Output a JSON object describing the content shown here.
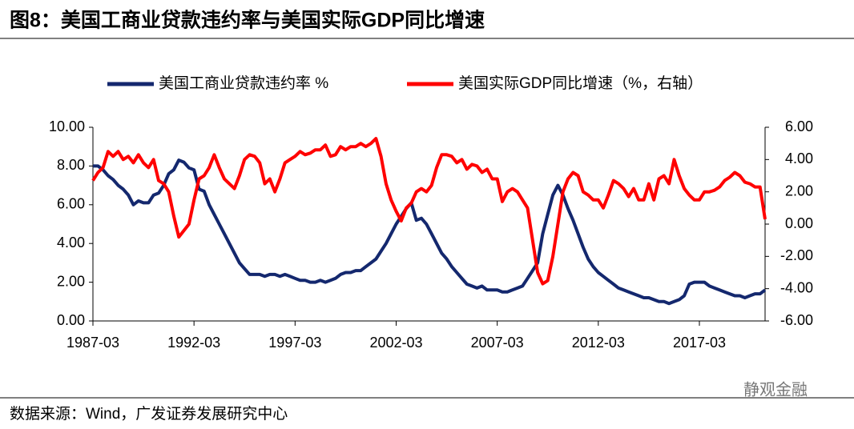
{
  "chart_data": {
    "type": "line",
    "title": "图8：美国工商业贷款违约率与美国实际GDP同比增速",
    "source": "数据来源：Wind，广发证券发展研究中心",
    "watermark": "静观金融",
    "x": [
      "1987-03",
      "1987-06",
      "1987-09",
      "1987-12",
      "1988-03",
      "1988-06",
      "1988-09",
      "1988-12",
      "1989-03",
      "1989-06",
      "1989-09",
      "1989-12",
      "1990-03",
      "1990-06",
      "1990-09",
      "1990-12",
      "1991-03",
      "1991-06",
      "1991-09",
      "1991-12",
      "1992-03",
      "1992-06",
      "1992-09",
      "1992-12",
      "1993-03",
      "1993-06",
      "1993-09",
      "1993-12",
      "1994-03",
      "1994-06",
      "1994-09",
      "1994-12",
      "1995-03",
      "1995-06",
      "1995-09",
      "1995-12",
      "1996-03",
      "1996-06",
      "1996-09",
      "1996-12",
      "1997-03",
      "1997-06",
      "1997-09",
      "1997-12",
      "1998-03",
      "1998-06",
      "1998-09",
      "1998-12",
      "1999-03",
      "1999-06",
      "1999-09",
      "1999-12",
      "2000-03",
      "2000-06",
      "2000-09",
      "2000-12",
      "2001-03",
      "2001-06",
      "2001-09",
      "2001-12",
      "2002-03",
      "2002-06",
      "2002-09",
      "2002-12",
      "2003-03",
      "2003-06",
      "2003-09",
      "2003-12",
      "2004-03",
      "2004-06",
      "2004-09",
      "2004-12",
      "2005-03",
      "2005-06",
      "2005-09",
      "2005-12",
      "2006-03",
      "2006-06",
      "2006-09",
      "2006-12",
      "2007-03",
      "2007-06",
      "2007-09",
      "2007-12",
      "2008-03",
      "2008-06",
      "2008-09",
      "2008-12",
      "2009-03",
      "2009-06",
      "2009-09",
      "2009-12",
      "2010-03",
      "2010-06",
      "2010-09",
      "2010-12",
      "2011-03",
      "2011-06",
      "2011-09",
      "2011-12",
      "2012-03",
      "2012-06",
      "2012-09",
      "2012-12",
      "2013-03",
      "2013-06",
      "2013-09",
      "2013-12",
      "2014-03",
      "2014-06",
      "2014-09",
      "2014-12",
      "2015-03",
      "2015-06",
      "2015-09",
      "2015-12",
      "2016-03",
      "2016-06",
      "2016-09",
      "2016-12",
      "2017-03",
      "2017-06",
      "2017-09",
      "2017-12",
      "2018-03",
      "2018-06",
      "2018-09",
      "2018-12",
      "2019-03",
      "2019-06",
      "2019-09",
      "2019-12",
      "2020-03",
      "2020-06"
    ],
    "xlim": [
      "1987-03",
      "2020-06"
    ],
    "xticks": [
      "1987-03",
      "1992-03",
      "1997-03",
      "2002-03",
      "2007-03",
      "2012-03",
      "2017-03"
    ],
    "ylim": [
      0,
      10
    ],
    "yticks": [
      {
        "value": 0,
        "label": "0.00"
      },
      {
        "value": 2,
        "label": "2.00"
      },
      {
        "value": 4,
        "label": "4.00"
      },
      {
        "value": 6,
        "label": "6.00"
      },
      {
        "value": 8,
        "label": "8.00"
      },
      {
        "value": 10,
        "label": "10.00"
      }
    ],
    "y2lim": [
      -6,
      6
    ],
    "y2ticks": [
      {
        "value": -6,
        "label": "-6.00"
      },
      {
        "value": -4,
        "label": "-4.00"
      },
      {
        "value": -2,
        "label": "-2.00"
      },
      {
        "value": 0,
        "label": "0.00"
      },
      {
        "value": 2,
        "label": "2.00"
      },
      {
        "value": 4,
        "label": "4.00"
      },
      {
        "value": 6,
        "label": "6.00"
      }
    ],
    "series": [
      {
        "name": "美国工商业贷款违约率 %",
        "color": "#14286e",
        "values": [
          8.0,
          8.0,
          7.8,
          7.5,
          7.3,
          7.0,
          6.8,
          6.5,
          6.0,
          6.2,
          6.1,
          6.1,
          6.5,
          6.6,
          7.0,
          7.6,
          7.8,
          8.3,
          8.2,
          7.9,
          7.8,
          6.8,
          6.7,
          6.0,
          5.5,
          5.0,
          4.5,
          4.0,
          3.5,
          3.0,
          2.7,
          2.4,
          2.4,
          2.4,
          2.3,
          2.4,
          2.4,
          2.3,
          2.4,
          2.3,
          2.2,
          2.1,
          2.1,
          2.0,
          2.0,
          2.1,
          2.0,
          2.1,
          2.2,
          2.4,
          2.5,
          2.5,
          2.6,
          2.6,
          2.8,
          3.0,
          3.2,
          3.6,
          4.0,
          4.5,
          5.0,
          5.4,
          5.8,
          6.1,
          5.2,
          5.3,
          5.0,
          4.5,
          4.0,
          3.5,
          3.2,
          2.8,
          2.5,
          2.2,
          1.9,
          1.8,
          1.7,
          1.8,
          1.6,
          1.6,
          1.6,
          1.5,
          1.5,
          1.6,
          1.7,
          1.8,
          2.2,
          2.6,
          3.0,
          4.5,
          5.5,
          6.5,
          7.0,
          6.5,
          5.8,
          5.2,
          4.5,
          3.8,
          3.2,
          2.8,
          2.5,
          2.3,
          2.1,
          1.9,
          1.7,
          1.6,
          1.5,
          1.4,
          1.3,
          1.2,
          1.2,
          1.1,
          1.0,
          1.0,
          0.9,
          1.0,
          1.1,
          1.3,
          1.9,
          2.0,
          2.0,
          2.0,
          1.8,
          1.7,
          1.6,
          1.5,
          1.4,
          1.3,
          1.3,
          1.2,
          1.3,
          1.4,
          1.4,
          1.6
        ]
      },
      {
        "name": "美国实际GDP同比增速（%，右轴）",
        "color": "#ff0000",
        "axis": "y2",
        "values": [
          2.7,
          3.2,
          3.5,
          4.5,
          4.2,
          4.5,
          4.0,
          4.2,
          3.8,
          4.3,
          3.8,
          3.5,
          4.0,
          2.7,
          2.5,
          2.0,
          0.5,
          -0.8,
          -0.4,
          0.0,
          1.5,
          2.8,
          3.0,
          3.5,
          4.3,
          3.5,
          2.8,
          2.5,
          2.2,
          3.0,
          4.0,
          4.3,
          4.2,
          3.8,
          2.5,
          2.8,
          2.0,
          2.8,
          3.8,
          4.0,
          4.2,
          4.5,
          4.3,
          4.4,
          4.6,
          4.6,
          4.9,
          4.2,
          4.3,
          4.8,
          4.6,
          4.8,
          4.8,
          5.0,
          4.8,
          5.0,
          5.3,
          4.2,
          2.5,
          1.5,
          0.8,
          0.2,
          1.0,
          1.3,
          2.0,
          2.2,
          2.0,
          2.4,
          3.5,
          4.3,
          4.3,
          4.2,
          3.8,
          4.0,
          3.4,
          3.7,
          3.6,
          3.2,
          3.4,
          2.8,
          2.8,
          1.4,
          2.0,
          2.2,
          2.0,
          1.5,
          1.0,
          -1.0,
          -3.0,
          -3.7,
          -3.5,
          -2.0,
          0.0,
          2.0,
          2.8,
          3.2,
          3.0,
          2.0,
          1.8,
          1.5,
          1.5,
          1.0,
          1.8,
          2.7,
          2.5,
          2.2,
          1.7,
          2.2,
          1.5,
          1.5,
          2.5,
          1.5,
          2.8,
          3.0,
          2.5,
          4.0,
          3.0,
          2.2,
          1.8,
          1.5,
          1.5,
          2.0,
          2.0,
          2.1,
          2.3,
          2.7,
          2.9,
          3.2,
          3.0,
          2.6,
          2.5,
          2.3,
          2.3,
          0.3
        ]
      }
    ]
  }
}
